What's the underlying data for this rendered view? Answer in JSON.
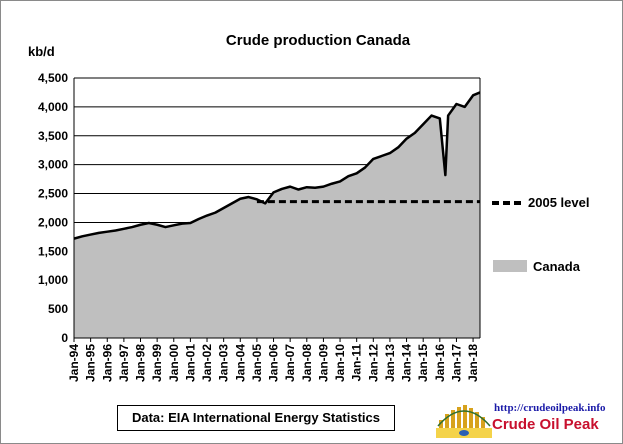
{
  "chart_data": {
    "type": "area",
    "title": "Crude  production Canada",
    "ylabel": "kb/d",
    "xlabel": "",
    "ylim": [
      0,
      4500
    ],
    "yticks": [
      "0",
      "500",
      "1,000",
      "1,500",
      "2,000",
      "2,500",
      "3,000",
      "3,500",
      "4,000",
      "4,500"
    ],
    "ytick_values": [
      0,
      500,
      1000,
      1500,
      2000,
      2500,
      3000,
      3500,
      4000,
      4500
    ],
    "xlim": [
      "1994-01",
      "2018-06"
    ],
    "xticks": [
      "Jan-94",
      "Jan-95",
      "Jan-96",
      "Jan-97",
      "Jan-98",
      "Jan-99",
      "Jan-00",
      "Jan-01",
      "Jan-02",
      "Jan-03",
      "Jan-04",
      "Jan-05",
      "Jan-06",
      "Jan-07",
      "Jan-08",
      "Jan-09",
      "Jan-10",
      "Jan-11",
      "Jan-12",
      "Jan-13",
      "Jan-14",
      "Jan-15",
      "Jan-16",
      "Jan-17",
      "Jan-18"
    ],
    "grid": "horizontal",
    "legend_placement": "right",
    "series": [
      {
        "name": "Canada",
        "style": "area",
        "color": "#bfbfbf",
        "outline_color": "#000000",
        "x": [
          "1994-01",
          "1994-07",
          "1995-01",
          "1995-07",
          "1996-01",
          "1996-07",
          "1997-01",
          "1997-07",
          "1998-01",
          "1998-07",
          "1999-01",
          "1999-07",
          "2000-01",
          "2000-07",
          "2001-01",
          "2001-07",
          "2002-01",
          "2002-07",
          "2003-01",
          "2003-07",
          "2004-01",
          "2004-07",
          "2005-01",
          "2005-07",
          "2006-01",
          "2006-07",
          "2007-01",
          "2007-07",
          "2008-01",
          "2008-07",
          "2009-01",
          "2009-07",
          "2010-01",
          "2010-07",
          "2011-01",
          "2011-07",
          "2012-01",
          "2012-07",
          "2013-01",
          "2013-07",
          "2014-01",
          "2014-07",
          "2015-01",
          "2015-07",
          "2016-01",
          "2016-05",
          "2016-07",
          "2017-01",
          "2017-07",
          "2018-01",
          "2018-06"
        ],
        "values": [
          1720,
          1760,
          1790,
          1820,
          1840,
          1860,
          1890,
          1920,
          1960,
          1990,
          1960,
          1920,
          1950,
          1980,
          1990,
          2060,
          2120,
          2170,
          2250,
          2330,
          2410,
          2440,
          2400,
          2330,
          2520,
          2580,
          2620,
          2570,
          2610,
          2600,
          2620,
          2670,
          2710,
          2800,
          2850,
          2950,
          3100,
          3150,
          3200,
          3300,
          3450,
          3550,
          3700,
          3850,
          3800,
          2820,
          3850,
          4050,
          4000,
          4200,
          4250
        ]
      },
      {
        "name": "2005 level",
        "style": "dashed",
        "color": "#000000",
        "x": [
          "2005-01",
          "2018-06"
        ],
        "values": [
          2360,
          2360
        ]
      }
    ],
    "source": "Data: EIA International Energy Statistics"
  },
  "brand": {
    "url": "http://crudeoilpeak.info",
    "name": "Crude Oil Peak"
  },
  "colors": {
    "area_fill": "#bfbfbf",
    "outline": "#000000",
    "brand_red": "#c8102e",
    "brand_blue": "#1a1aa8"
  }
}
